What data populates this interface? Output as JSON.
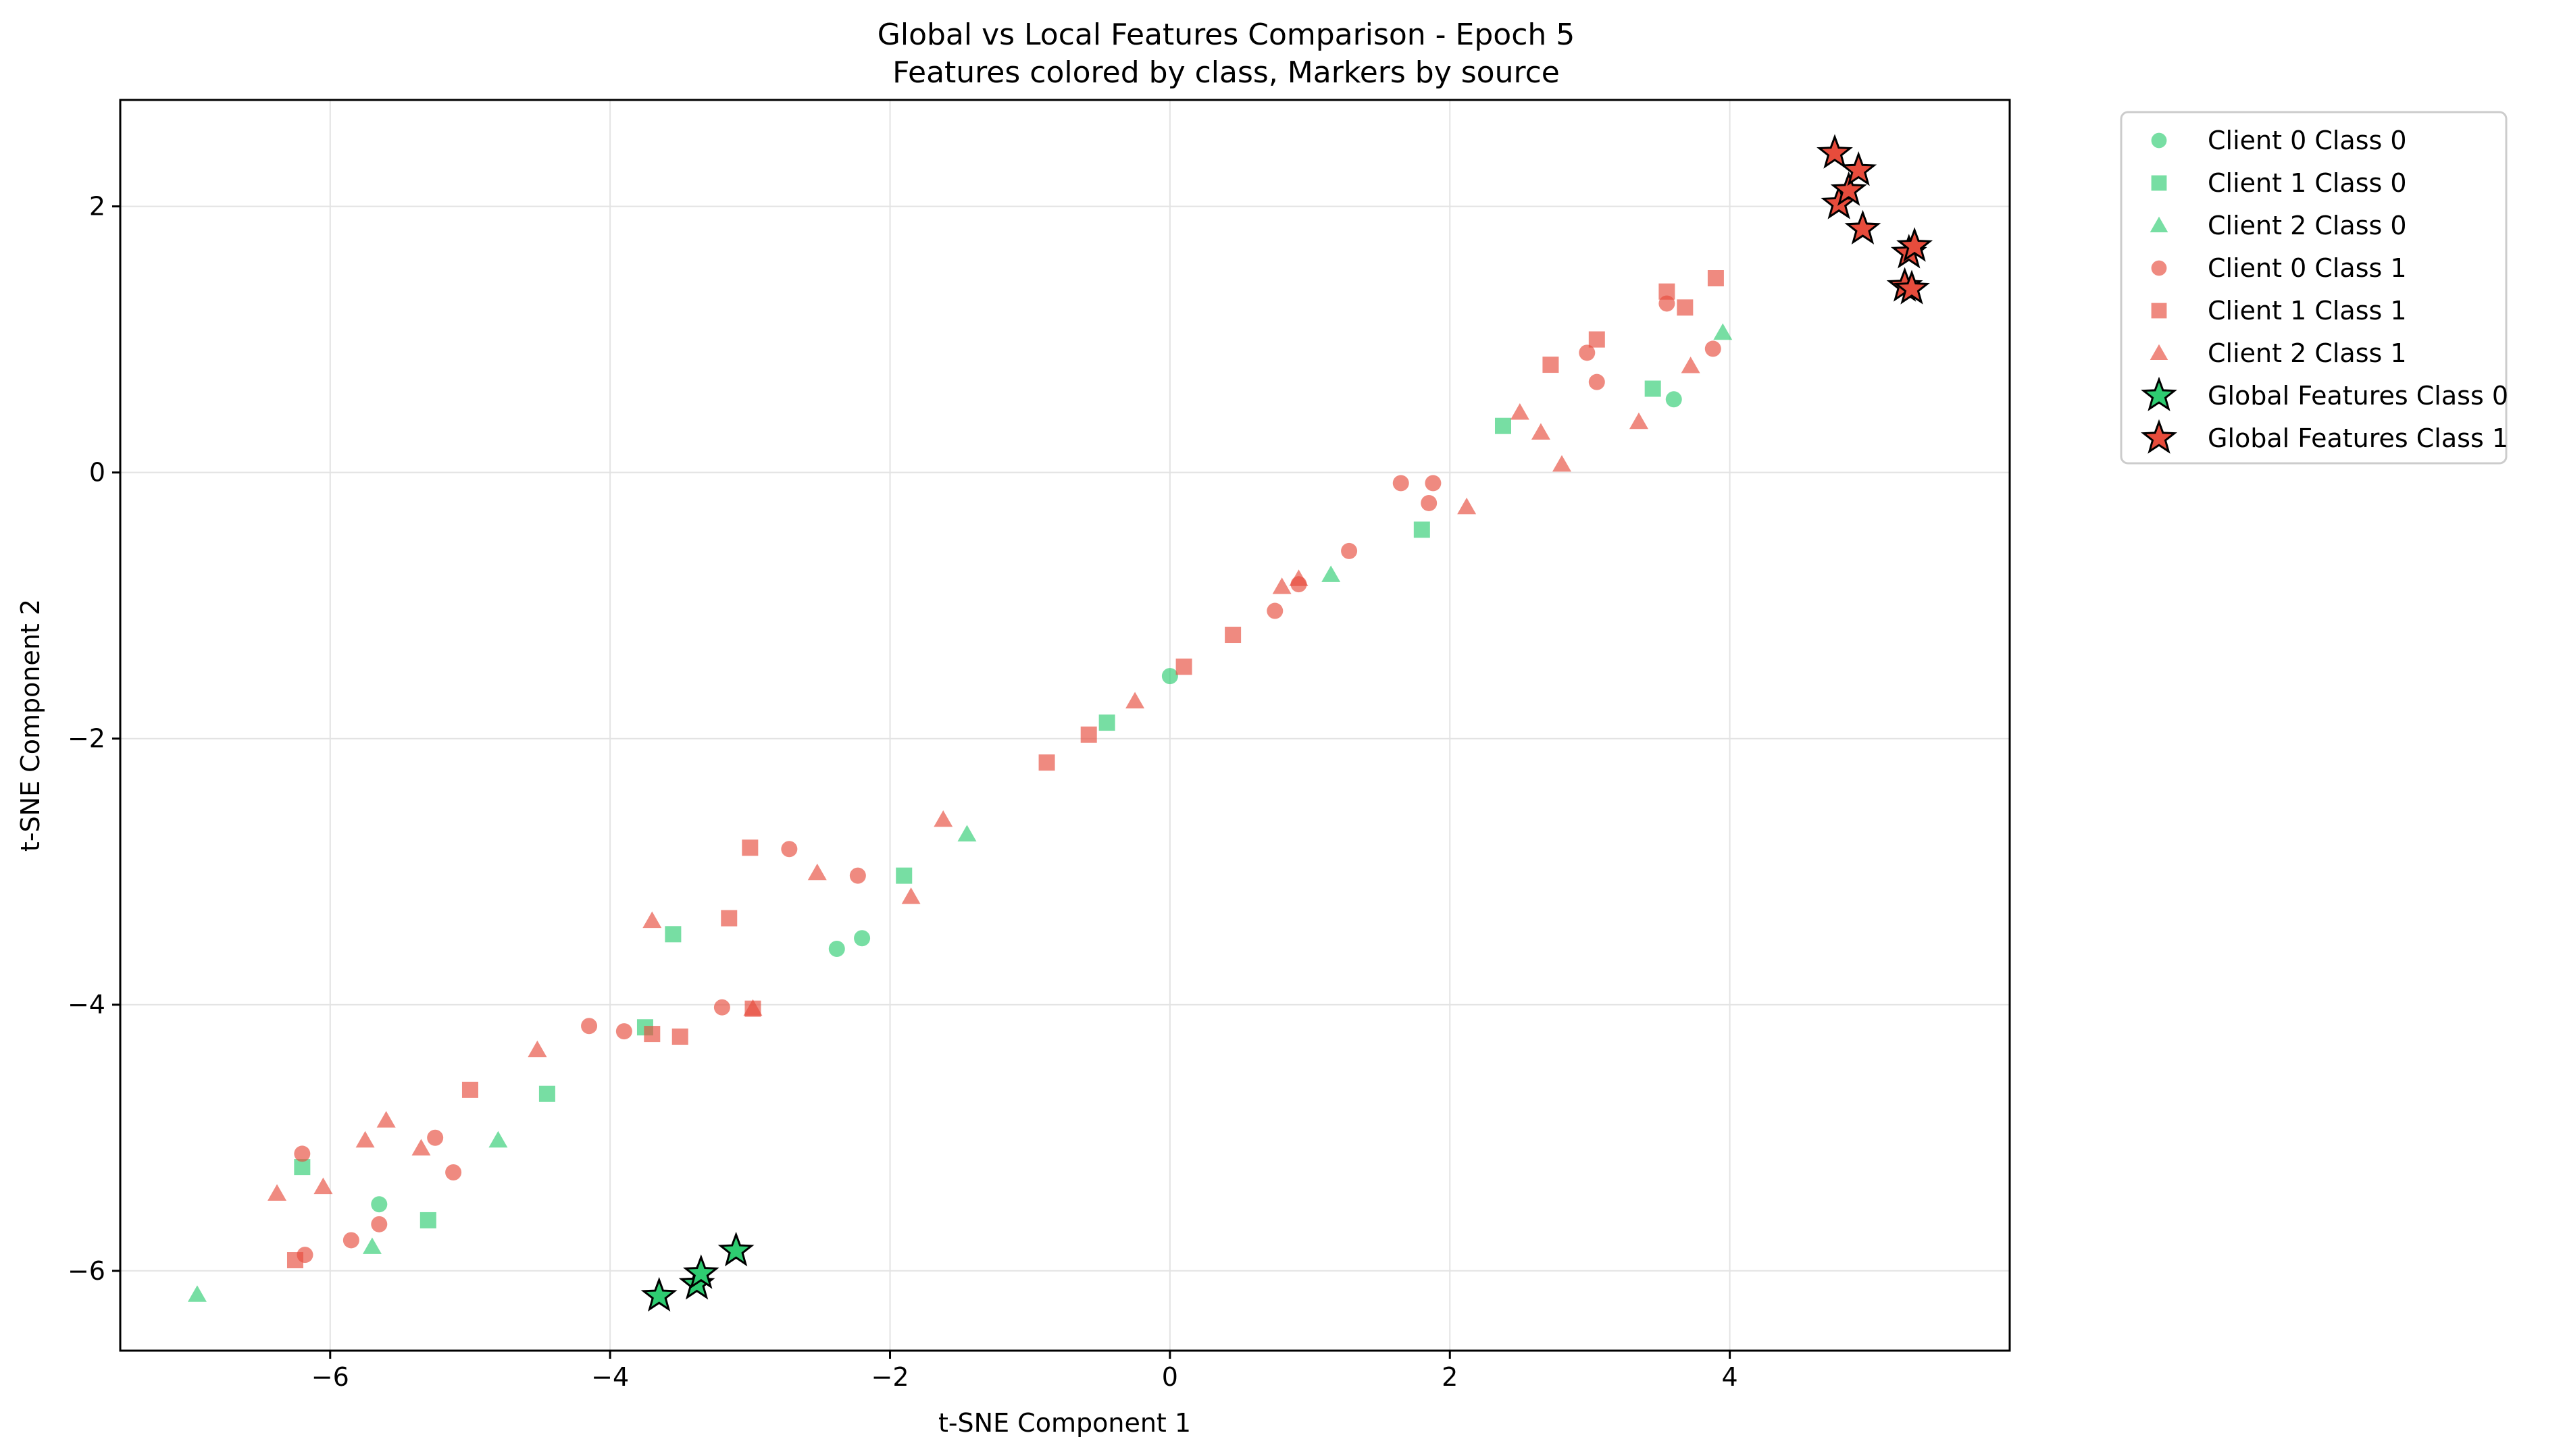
{
  "chart_data": {
    "type": "scatter",
    "title": "Global vs Local Features Comparison - Epoch 5",
    "subtitle": "Features colored by class, Markers by source",
    "xlabel": "t-SNE Component 1",
    "ylabel": "t-SNE Component 2",
    "xlim": [
      -7.5,
      6.0
    ],
    "ylim": [
      -6.6,
      2.8
    ],
    "xticks": [
      -6,
      -4,
      -2,
      0,
      2,
      4
    ],
    "yticks": [
      -6,
      -4,
      -2,
      0,
      2
    ],
    "xtick_labels": [
      "−6",
      "−4",
      "−2",
      "0",
      "2",
      "4"
    ],
    "ytick_labels": [
      "−6",
      "−4",
      "−2",
      "0",
      "2"
    ],
    "grid": true,
    "legend_position": "outside-right-top",
    "colors": {
      "class0": "#2ecc71",
      "class1": "#e74c3c"
    },
    "series": [
      {
        "name": "Client 0 Class 0",
        "marker": "circle",
        "color": "#2ecc71",
        "x": [
          -5.65,
          -2.38,
          -2.2,
          0.0,
          3.6
        ],
        "y": [
          -5.5,
          -3.58,
          -3.5,
          -1.53,
          0.55
        ]
      },
      {
        "name": "Client 1 Class 0",
        "marker": "square",
        "color": "#2ecc71",
        "x": [
          -6.2,
          -5.3,
          -4.45,
          -3.75,
          -3.55,
          -1.9,
          -0.45,
          1.8,
          2.38,
          3.45
        ],
        "y": [
          -5.22,
          -5.62,
          -4.67,
          -4.17,
          -3.47,
          -3.03,
          -1.88,
          -0.43,
          0.35,
          0.63
        ]
      },
      {
        "name": "Client 2 Class 0",
        "marker": "triangle",
        "color": "#2ecc71",
        "x": [
          -6.95,
          -5.7,
          -4.8,
          -1.45,
          1.15,
          3.95
        ],
        "y": [
          -6.18,
          -5.82,
          -5.02,
          -2.72,
          -0.77,
          1.05
        ]
      },
      {
        "name": "Client 0 Class 1",
        "marker": "circle",
        "color": "#e74c3c",
        "x": [
          -6.2,
          -6.18,
          -5.85,
          -5.65,
          -5.25,
          -5.12,
          -4.15,
          -3.9,
          -3.2,
          -2.72,
          -2.23,
          0.75,
          0.92,
          1.28,
          1.65,
          1.85,
          1.88,
          2.98,
          3.05,
          3.55,
          3.88
        ],
        "y": [
          -5.12,
          -5.88,
          -5.77,
          -5.65,
          -5.0,
          -5.26,
          -4.16,
          -4.2,
          -4.02,
          -2.83,
          -3.03,
          -1.04,
          -0.84,
          -0.59,
          -0.08,
          -0.23,
          -0.08,
          0.9,
          0.68,
          1.27,
          0.93
        ]
      },
      {
        "name": "Client 1 Class 1",
        "marker": "square",
        "color": "#e74c3c",
        "x": [
          -6.25,
          -5.0,
          -3.7,
          -3.5,
          -3.15,
          -3.0,
          -2.98,
          -0.88,
          -0.58,
          0.1,
          0.45,
          2.72,
          3.05,
          3.55,
          3.68,
          3.9
        ],
        "y": [
          -5.92,
          -4.64,
          -4.22,
          -4.24,
          -3.35,
          -2.82,
          -4.03,
          -2.18,
          -1.97,
          -1.46,
          -1.22,
          0.81,
          1.0,
          1.36,
          1.24,
          1.46
        ]
      },
      {
        "name": "Client 2 Class 1",
        "marker": "triangle",
        "color": "#e74c3c",
        "x": [
          -6.38,
          -6.05,
          -5.75,
          -5.6,
          -5.35,
          -4.52,
          -3.7,
          -2.98,
          -2.52,
          -1.85,
          -1.62,
          -0.25,
          0.8,
          0.92,
          2.12,
          2.5,
          2.65,
          2.8,
          3.35,
          3.72
        ],
        "y": [
          -5.42,
          -5.37,
          -5.02,
          -4.87,
          -5.08,
          -4.34,
          -3.37,
          -4.03,
          -3.01,
          -3.19,
          -2.61,
          -1.72,
          -0.86,
          -0.8,
          -0.26,
          0.45,
          0.3,
          0.06,
          0.38,
          0.8
        ]
      },
      {
        "name": "Global Features Class 0",
        "marker": "star",
        "color": "#2ecc71",
        "x": [
          -3.65,
          -3.38,
          -3.35,
          -3.1
        ],
        "y": [
          -6.19,
          -6.1,
          -6.02,
          -5.85
        ]
      },
      {
        "name": "Global Features Class 1",
        "marker": "star",
        "color": "#e74c3c",
        "x": [
          4.75,
          4.78,
          4.85,
          4.92,
          4.95,
          5.25,
          5.28,
          5.3,
          5.32
        ],
        "y": [
          2.4,
          2.02,
          2.12,
          2.27,
          1.83,
          1.4,
          1.65,
          1.38,
          1.7
        ]
      }
    ]
  }
}
